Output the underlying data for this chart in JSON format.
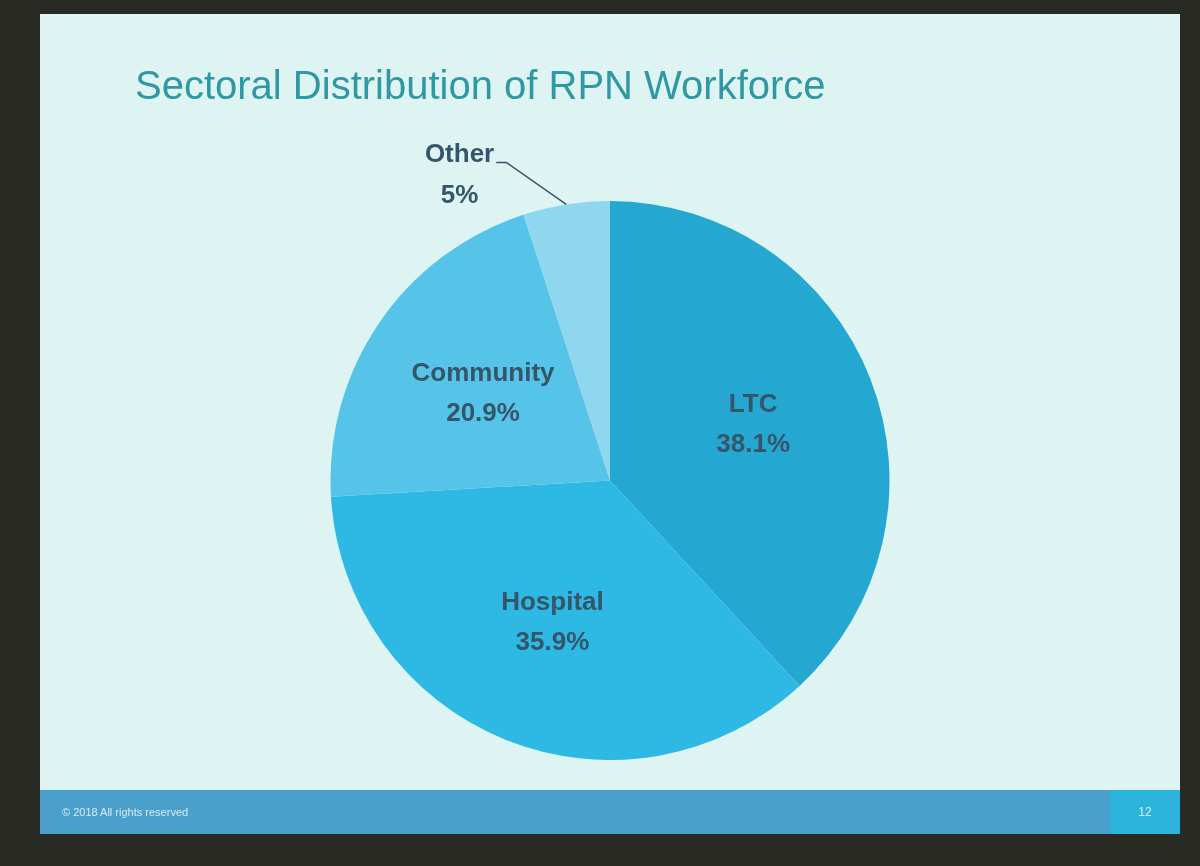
{
  "chart_data": {
    "type": "pie",
    "title": "Sectoral Distribution of RPN Workforce",
    "categories": [
      "LTC",
      "Hospital",
      "Community",
      "Other"
    ],
    "values": [
      38.1,
      35.9,
      20.9,
      5
    ],
    "value_labels": [
      "38.1%",
      "35.9%",
      "20.9%",
      "5%"
    ],
    "colors": [
      "#24a7d1",
      "#2db9e4",
      "#55c4e8",
      "#8ed7ef"
    ],
    "annotations": [
      "© 2018 All rights reserved",
      "12"
    ]
  }
}
